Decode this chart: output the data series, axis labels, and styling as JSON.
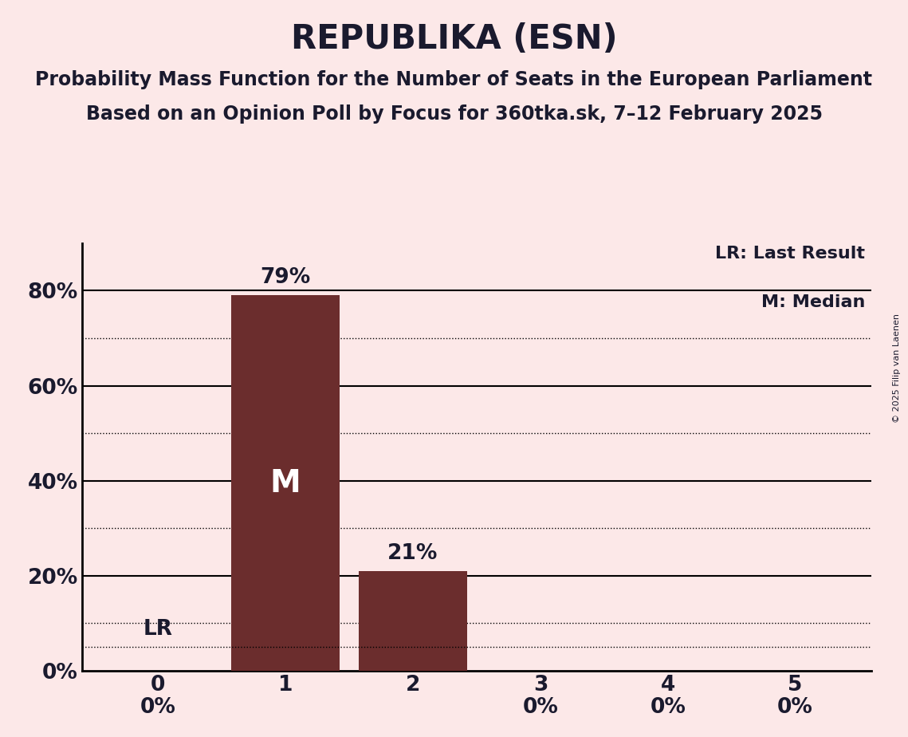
{
  "title": "REPUBLIKA (ESN)",
  "subtitle1": "Probability Mass Function for the Number of Seats in the European Parliament",
  "subtitle2": "Based on an Opinion Poll by Focus for 360tka.sk, 7–12 February 2025",
  "copyright": "© 2025 Filip van Laenen",
  "categories": [
    0,
    1,
    2,
    3,
    4,
    5
  ],
  "values": [
    0,
    79,
    21,
    0,
    0,
    0
  ],
  "bar_color": "#6b2d2d",
  "background_color": "#fce8e8",
  "yticks_shown": [
    0,
    20,
    40,
    60,
    80
  ],
  "solid_lines": [
    20,
    40,
    60,
    80
  ],
  "dotted_lines": [
    10,
    30,
    50,
    70
  ],
  "lr_value": 5,
  "lr_label": "LR",
  "median_label": "M",
  "median_seat": 1,
  "legend_lr": "LR: Last Result",
  "legend_m": "M: Median",
  "title_fontsize": 30,
  "subtitle_fontsize": 17,
  "bar_label_fontsize": 19,
  "tick_fontsize": 19,
  "legend_fontsize": 16,
  "ylim": [
    0,
    90
  ],
  "text_color": "#1a1a2e"
}
